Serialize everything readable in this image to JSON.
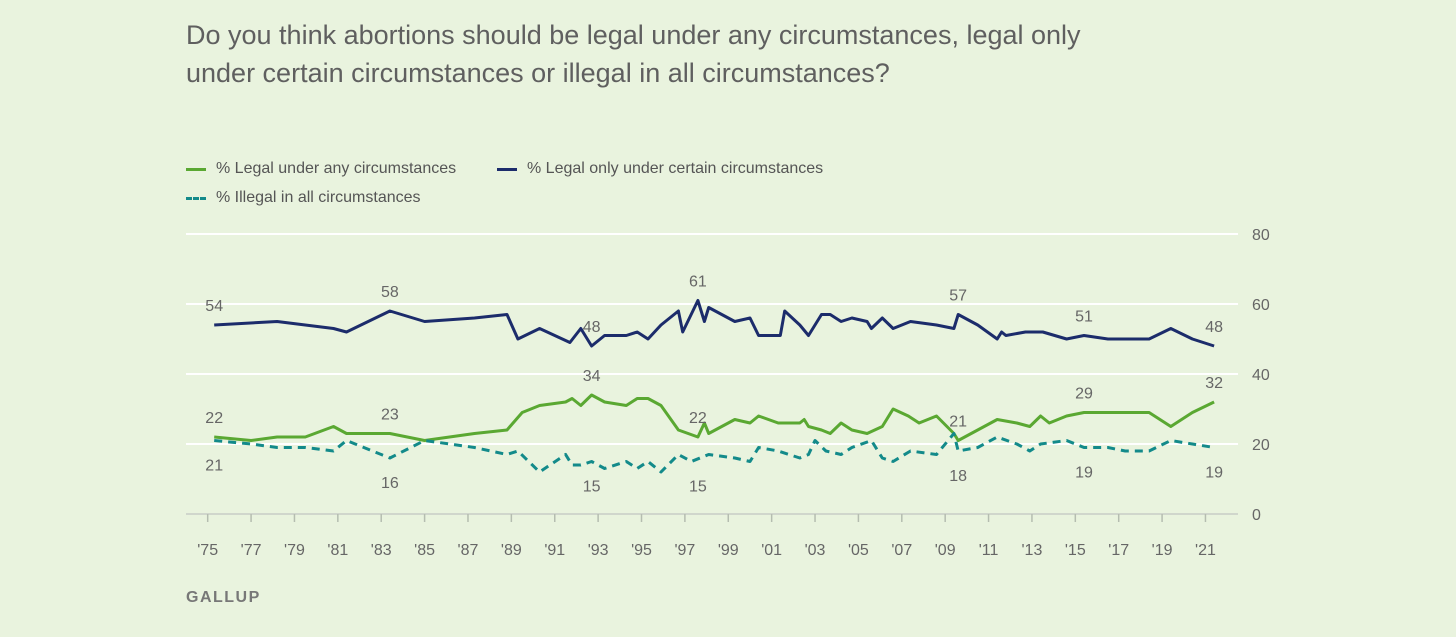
{
  "title": "Do you think abortions should be legal under any circumstances, legal only under certain circumstances or illegal in all circumstances?",
  "source": "GALLUP",
  "colors": {
    "background": "#e9f3de",
    "legal_any": "#5aa832",
    "legal_certain": "#1c2c6b",
    "illegal": "#138a8a",
    "grid": "#ffffff",
    "text": "#666666"
  },
  "chart_data": {
    "type": "line",
    "title": "Do you think abortions should be legal under any circumstances, legal only under certain circumstances or illegal in all circumstances?",
    "xlim": [
      1974.0,
      2022.5
    ],
    "ylim": [
      0,
      80
    ],
    "y_ticks": [
      0,
      20,
      40,
      60,
      80
    ],
    "x_ticks": [
      {
        "year": 1975,
        "label": "'75"
      },
      {
        "year": 1977,
        "label": "'77"
      },
      {
        "year": 1979,
        "label": "'79"
      },
      {
        "year": 1981,
        "label": "'81"
      },
      {
        "year": 1983,
        "label": "'83"
      },
      {
        "year": 1985,
        "label": "'85"
      },
      {
        "year": 1987,
        "label": "'87"
      },
      {
        "year": 1989,
        "label": "'89"
      },
      {
        "year": 1991,
        "label": "'91"
      },
      {
        "year": 1993,
        "label": "'93"
      },
      {
        "year": 1995,
        "label": "'95"
      },
      {
        "year": 1997,
        "label": "'97"
      },
      {
        "year": 1999,
        "label": "'99"
      },
      {
        "year": 2001,
        "label": "'01"
      },
      {
        "year": 2003,
        "label": "'03"
      },
      {
        "year": 2005,
        "label": "'05"
      },
      {
        "year": 2007,
        "label": "'07"
      },
      {
        "year": 2009,
        "label": "'09"
      },
      {
        "year": 2011,
        "label": "'11"
      },
      {
        "year": 2013,
        "label": "'13"
      },
      {
        "year": 2015,
        "label": "'15"
      },
      {
        "year": 2017,
        "label": "'17"
      },
      {
        "year": 2019,
        "label": "'19"
      },
      {
        "year": 2021,
        "label": "'21"
      }
    ],
    "grid": true,
    "legend": "top-left",
    "series": [
      {
        "name": "% Legal under any circumstances",
        "style": "solid",
        "color": "#5aa832",
        "points": [
          [
            1975.3,
            22
          ],
          [
            1977.0,
            21
          ],
          [
            1978.2,
            22
          ],
          [
            1979.5,
            22
          ],
          [
            1980.8,
            25
          ],
          [
            1981.4,
            23
          ],
          [
            1983.4,
            23
          ],
          [
            1985.0,
            21
          ],
          [
            1987.3,
            23
          ],
          [
            1988.8,
            24
          ],
          [
            1989.5,
            29
          ],
          [
            1990.3,
            31
          ],
          [
            1991.5,
            32
          ],
          [
            1991.8,
            33
          ],
          [
            1992.2,
            31
          ],
          [
            1992.7,
            34
          ],
          [
            1993.3,
            32
          ],
          [
            1994.3,
            31
          ],
          [
            1994.8,
            33
          ],
          [
            1995.3,
            33
          ],
          [
            1995.9,
            31
          ],
          [
            1996.7,
            24
          ],
          [
            1997.6,
            22
          ],
          [
            1997.9,
            26
          ],
          [
            1998.1,
            23
          ],
          [
            1999.3,
            27
          ],
          [
            2000.0,
            26
          ],
          [
            2000.4,
            28
          ],
          [
            2001.3,
            26
          ],
          [
            2002.3,
            26
          ],
          [
            2002.5,
            27
          ],
          [
            2002.7,
            25
          ],
          [
            2003.3,
            24
          ],
          [
            2003.7,
            23
          ],
          [
            2004.2,
            26
          ],
          [
            2004.7,
            24
          ],
          [
            2005.4,
            23
          ],
          [
            2006.1,
            25
          ],
          [
            2006.6,
            30
          ],
          [
            2007.3,
            28
          ],
          [
            2007.8,
            26
          ],
          [
            2008.6,
            28
          ],
          [
            2009.4,
            23
          ],
          [
            2009.6,
            21
          ],
          [
            2010.5,
            24
          ],
          [
            2011.4,
            27
          ],
          [
            2012.3,
            26
          ],
          [
            2012.9,
            25
          ],
          [
            2013.4,
            28
          ],
          [
            2013.8,
            26
          ],
          [
            2014.6,
            28
          ],
          [
            2015.4,
            29
          ],
          [
            2016.5,
            29
          ],
          [
            2018.4,
            29
          ],
          [
            2019.4,
            25
          ],
          [
            2020.4,
            29
          ],
          [
            2021.4,
            32
          ]
        ]
      },
      {
        "name": "% Legal only under certain circumstances",
        "style": "solid",
        "color": "#1c2c6b",
        "points": [
          [
            1975.3,
            54
          ],
          [
            1978.2,
            55
          ],
          [
            1979.5,
            54
          ],
          [
            1980.8,
            53
          ],
          [
            1981.4,
            52
          ],
          [
            1983.4,
            58
          ],
          [
            1985.0,
            55
          ],
          [
            1987.3,
            56
          ],
          [
            1988.8,
            57
          ],
          [
            1989.3,
            50
          ],
          [
            1990.3,
            53
          ],
          [
            1991.7,
            49
          ],
          [
            1992.2,
            53
          ],
          [
            1992.7,
            48
          ],
          [
            1993.3,
            51
          ],
          [
            1994.3,
            51
          ],
          [
            1994.8,
            52
          ],
          [
            1995.3,
            50
          ],
          [
            1995.9,
            54
          ],
          [
            1996.7,
            58
          ],
          [
            1996.9,
            52
          ],
          [
            1997.6,
            61
          ],
          [
            1997.9,
            55
          ],
          [
            1998.1,
            59
          ],
          [
            1999.3,
            55
          ],
          [
            2000.0,
            56
          ],
          [
            2000.4,
            51
          ],
          [
            2001.4,
            51
          ],
          [
            2001.6,
            58
          ],
          [
            2002.3,
            54
          ],
          [
            2002.7,
            51
          ],
          [
            2003.3,
            57
          ],
          [
            2003.7,
            57
          ],
          [
            2004.2,
            55
          ],
          [
            2004.7,
            56
          ],
          [
            2005.4,
            55
          ],
          [
            2005.6,
            53
          ],
          [
            2006.1,
            56
          ],
          [
            2006.6,
            53
          ],
          [
            2007.4,
            55
          ],
          [
            2008.6,
            54
          ],
          [
            2009.4,
            53
          ],
          [
            2009.6,
            57
          ],
          [
            2010.5,
            54
          ],
          [
            2011.4,
            50
          ],
          [
            2011.6,
            52
          ],
          [
            2011.8,
            51
          ],
          [
            2012.7,
            52
          ],
          [
            2013.5,
            52
          ],
          [
            2014.6,
            50
          ],
          [
            2015.4,
            51
          ],
          [
            2016.5,
            50
          ],
          [
            2018.4,
            50
          ],
          [
            2019.4,
            53
          ],
          [
            2020.4,
            50
          ],
          [
            2021.4,
            48
          ]
        ]
      },
      {
        "name": "% Illegal in all circumstances",
        "style": "dashed",
        "color": "#138a8a",
        "points": [
          [
            1975.3,
            21
          ],
          [
            1977.0,
            20
          ],
          [
            1978.2,
            19
          ],
          [
            1979.5,
            19
          ],
          [
            1980.8,
            18
          ],
          [
            1981.4,
            21
          ],
          [
            1983.4,
            16
          ],
          [
            1985.0,
            21
          ],
          [
            1987.3,
            19
          ],
          [
            1988.8,
            17
          ],
          [
            1989.3,
            18
          ],
          [
            1990.3,
            12
          ],
          [
            1991.5,
            17
          ],
          [
            1991.8,
            14
          ],
          [
            1992.2,
            14
          ],
          [
            1992.7,
            15
          ],
          [
            1993.3,
            13
          ],
          [
            1994.3,
            15
          ],
          [
            1994.8,
            13
          ],
          [
            1995.3,
            15
          ],
          [
            1995.9,
            12
          ],
          [
            1996.7,
            17
          ],
          [
            1997.3,
            15
          ],
          [
            1998.1,
            17
          ],
          [
            1999.3,
            16
          ],
          [
            2000.0,
            15
          ],
          [
            2000.4,
            19
          ],
          [
            2001.3,
            18
          ],
          [
            2002.3,
            16
          ],
          [
            2002.7,
            17
          ],
          [
            2003.0,
            21
          ],
          [
            2003.5,
            18
          ],
          [
            2004.2,
            17
          ],
          [
            2004.7,
            19
          ],
          [
            2005.6,
            21
          ],
          [
            2006.1,
            16
          ],
          [
            2006.6,
            15
          ],
          [
            2007.4,
            18
          ],
          [
            2008.6,
            17
          ],
          [
            2009.4,
            23
          ],
          [
            2009.6,
            18
          ],
          [
            2010.5,
            19
          ],
          [
            2011.4,
            22
          ],
          [
            2012.3,
            20
          ],
          [
            2012.9,
            18
          ],
          [
            2013.4,
            20
          ],
          [
            2014.6,
            21
          ],
          [
            2015.4,
            19
          ],
          [
            2016.5,
            19
          ],
          [
            2017.3,
            18
          ],
          [
            2018.4,
            18
          ],
          [
            2019.4,
            21
          ],
          [
            2020.4,
            20
          ],
          [
            2021.4,
            19
          ]
        ]
      }
    ],
    "annotations": [
      {
        "series": 1,
        "x": 1975.3,
        "y": 54,
        "label": "54",
        "pos": "above"
      },
      {
        "series": 1,
        "x": 1983.4,
        "y": 58,
        "label": "58",
        "pos": "above"
      },
      {
        "series": 1,
        "x": 1992.7,
        "y": 48,
        "label": "48",
        "pos": "above"
      },
      {
        "series": 1,
        "x": 1997.6,
        "y": 61,
        "label": "61",
        "pos": "above"
      },
      {
        "series": 1,
        "x": 2009.6,
        "y": 57,
        "label": "57",
        "pos": "above"
      },
      {
        "series": 1,
        "x": 2015.4,
        "y": 51,
        "label": "51",
        "pos": "above"
      },
      {
        "series": 1,
        "x": 2021.4,
        "y": 48,
        "label": "48",
        "pos": "above"
      },
      {
        "series": 0,
        "x": 1975.3,
        "y": 22,
        "label": "22",
        "pos": "above"
      },
      {
        "series": 0,
        "x": 1983.4,
        "y": 23,
        "label": "23",
        "pos": "above"
      },
      {
        "series": 0,
        "x": 1992.7,
        "y": 34,
        "label": "34",
        "pos": "above"
      },
      {
        "series": 0,
        "x": 1997.6,
        "y": 22,
        "label": "22",
        "pos": "above"
      },
      {
        "series": 0,
        "x": 2009.6,
        "y": 21,
        "label": "21",
        "pos": "above"
      },
      {
        "series": 0,
        "x": 2015.4,
        "y": 29,
        "label": "29",
        "pos": "above"
      },
      {
        "series": 0,
        "x": 2021.4,
        "y": 32,
        "label": "32",
        "pos": "above"
      },
      {
        "series": 2,
        "x": 1975.3,
        "y": 21,
        "label": "21",
        "pos": "below"
      },
      {
        "series": 2,
        "x": 1983.4,
        "y": 16,
        "label": "16",
        "pos": "below"
      },
      {
        "series": 2,
        "x": 1992.7,
        "y": 15,
        "label": "15",
        "pos": "below"
      },
      {
        "series": 2,
        "x": 1997.6,
        "y": 15,
        "label": "15",
        "pos": "below"
      },
      {
        "series": 2,
        "x": 2009.6,
        "y": 18,
        "label": "18",
        "pos": "below"
      },
      {
        "series": 2,
        "x": 2015.4,
        "y": 19,
        "label": "19",
        "pos": "below"
      },
      {
        "series": 2,
        "x": 2021.4,
        "y": 19,
        "label": "19",
        "pos": "below"
      }
    ]
  }
}
